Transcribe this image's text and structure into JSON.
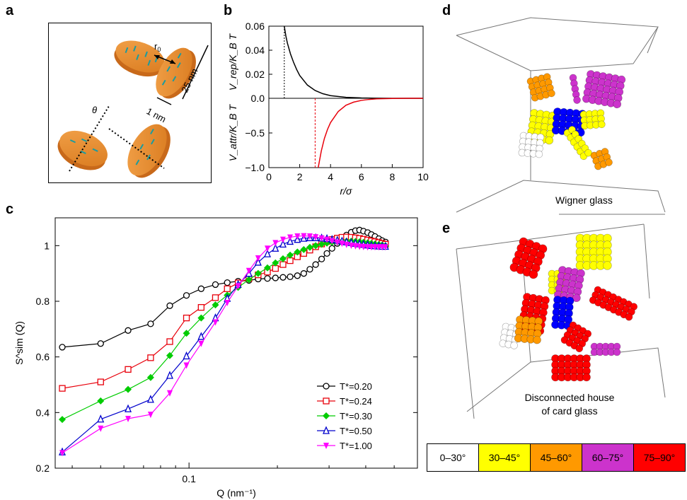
{
  "panels": {
    "a": "a",
    "b": "b",
    "c": "c",
    "d": "d",
    "e": "e"
  },
  "panel_a": {
    "r0_label": "r",
    "r0_sub": "0",
    "len_label": "25 nm",
    "thick_label": "1 nm",
    "theta_label": "θ"
  },
  "panel_b": {
    "ylabel_top": "V_rep/K_B T",
    "ylabel_bottom": "V_attr/K_B T",
    "xlabel": "r/σ",
    "yticks_top": [
      "0.06",
      "0.04",
      "0.02",
      "0.0"
    ],
    "yticks_bottom": [
      "−0.5",
      "−1.0"
    ],
    "xticks": [
      "0",
      "2",
      "4",
      "6",
      "8",
      "10"
    ],
    "colors": {
      "rep": "#000000",
      "attr": "#e8000b"
    }
  },
  "panel_c": {
    "ylabel": "S^sim (Q)",
    "xlabel": "Q (nm⁻¹)",
    "yticks": [
      "1",
      "0.8",
      "0.6",
      "0.4",
      "0.2"
    ],
    "xtick": "0.1"
  },
  "panel_d": {
    "caption": "Wigner glass"
  },
  "panel_e": {
    "caption_line1": "Disconnected house",
    "caption_line2": "of card glass"
  },
  "colorbar": [
    {
      "label": "0–30°",
      "color": "#ffffff"
    },
    {
      "label": "30–45°",
      "color": "#ffff00"
    },
    {
      "label": "45–60°",
      "color": "#ff9900"
    },
    {
      "label": "60–75°",
      "color": "#cc33cc"
    },
    {
      "label": "75–90°",
      "color": "#ff0000"
    }
  ],
  "chart_data": [
    {
      "type": "line",
      "panel": "b-top",
      "xlabel": "r/σ",
      "ylabel": "V_rep/K_B T",
      "xlim": [
        0,
        10
      ],
      "ylim": [
        0.0,
        0.06
      ],
      "series": [
        {
          "x": [
            1.0,
            1.1,
            1.2,
            1.4,
            1.6,
            1.8,
            2.0,
            2.5,
            3.0,
            3.5,
            4.0,
            5.0,
            6.0,
            7.0,
            8.0,
            10.0
          ],
          "values": [
            0.06,
            0.052,
            0.046,
            0.037,
            0.03,
            0.024,
            0.019,
            0.011,
            0.0065,
            0.0038,
            0.0022,
            0.0008,
            0.0003,
            0.0001,
            0.0,
            0.0
          ]
        }
      ]
    },
    {
      "type": "line",
      "panel": "b-bottom",
      "xlabel": "r/σ",
      "ylabel": "V_attr/K_B T",
      "xlim": [
        0,
        10
      ],
      "ylim": [
        -1.0,
        0.0
      ],
      "series": [
        {
          "x": [
            3.2,
            3.4,
            3.6,
            3.8,
            4.0,
            4.5,
            5.0,
            5.5,
            6.0,
            6.5,
            7.0,
            8.0,
            9.0,
            10.0
          ],
          "values": [
            -1.0,
            -0.76,
            -0.58,
            -0.45,
            -0.35,
            -0.19,
            -0.1,
            -0.055,
            -0.03,
            -0.016,
            -0.008,
            -0.002,
            -0.0005,
            0.0
          ]
        }
      ]
    },
    {
      "type": "line",
      "panel": "c",
      "xlabel": "Q (nm⁻¹)",
      "ylabel": "S^sim (Q)",
      "xscale": "log",
      "xlim": [
        0.035,
        0.6
      ],
      "ylim": [
        0.2,
        1.1
      ],
      "x": [
        0.037,
        0.05,
        0.062,
        0.074,
        0.086,
        0.098,
        0.11,
        0.123,
        0.135,
        0.147,
        0.16,
        0.172,
        0.185,
        0.197,
        0.209,
        0.221,
        0.234,
        0.246,
        0.258,
        0.27,
        0.283,
        0.295,
        0.307,
        0.32,
        0.332,
        0.344,
        0.357,
        0.369,
        0.381,
        0.393,
        0.406,
        0.418,
        0.43,
        0.443,
        0.455,
        0.467
      ],
      "series": [
        {
          "name": "T*=0.20",
          "color": "#000000",
          "marker": "circle-open",
          "values": [
            0.635,
            0.648,
            0.695,
            0.719,
            0.784,
            0.821,
            0.845,
            0.86,
            0.867,
            0.872,
            0.875,
            0.88,
            0.882,
            0.884,
            0.886,
            0.888,
            0.892,
            0.9,
            0.915,
            0.932,
            0.952,
            0.972,
            0.99,
            1.008,
            1.024,
            1.038,
            1.048,
            1.054,
            1.056,
            1.052,
            1.047,
            1.04,
            1.033,
            1.025,
            1.018,
            1.013
          ]
        },
        {
          "name": "T*=0.24",
          "color": "#e8000b",
          "marker": "square-open",
          "values": [
            0.487,
            0.51,
            0.555,
            0.597,
            0.655,
            0.74,
            0.778,
            0.813,
            0.845,
            0.866,
            0.882,
            0.895,
            0.905,
            0.918,
            0.932,
            0.946,
            0.96,
            0.972,
            0.984,
            0.996,
            1.006,
            1.015,
            1.022,
            1.027,
            1.03,
            1.031,
            1.03,
            1.028,
            1.026,
            1.023,
            1.02,
            1.017,
            1.014,
            1.011,
            1.008,
            1.005
          ]
        },
        {
          "name": "T*=0.30",
          "color": "#00cc00",
          "marker": "diamond",
          "values": [
            0.375,
            0.442,
            0.483,
            0.526,
            0.605,
            0.685,
            0.74,
            0.787,
            0.822,
            0.85,
            0.878,
            0.9,
            0.92,
            0.938,
            0.953,
            0.966,
            0.977,
            0.986,
            0.994,
            1.0,
            1.005,
            1.009,
            1.012,
            1.014,
            1.015,
            1.016,
            1.016,
            1.015,
            1.014,
            1.012,
            1.01,
            1.008,
            1.006,
            1.004,
            1.002,
            1.0
          ]
        },
        {
          "name": "T*=0.50",
          "color": "#0000cc",
          "marker": "triangle-up-open",
          "values": [
            0.258,
            0.376,
            0.413,
            0.447,
            0.533,
            0.603,
            0.673,
            0.74,
            0.81,
            0.86,
            0.9,
            0.94,
            0.97,
            0.99,
            1.005,
            1.015,
            1.022,
            1.026,
            1.028,
            1.028,
            1.027,
            1.025,
            1.022,
            1.019,
            1.016,
            1.013,
            1.01,
            1.008,
            1.006,
            1.004,
            1.002,
            1.0,
            0.999,
            0.998,
            0.997,
            0.997
          ]
        },
        {
          "name": "T*=1.00",
          "color": "#ff00ff",
          "marker": "triangle-down",
          "values": [
            0.255,
            0.343,
            0.378,
            0.393,
            0.47,
            0.57,
            0.648,
            0.725,
            0.795,
            0.855,
            0.91,
            0.955,
            0.99,
            1.01,
            1.022,
            1.03,
            1.034,
            1.035,
            1.034,
            1.031,
            1.027,
            1.022,
            1.017,
            1.012,
            1.008,
            1.004,
            1.001,
            0.999,
            0.997,
            0.996,
            0.995,
            0.995,
            0.995,
            0.995,
            0.995,
            0.995
          ]
        }
      ]
    }
  ]
}
